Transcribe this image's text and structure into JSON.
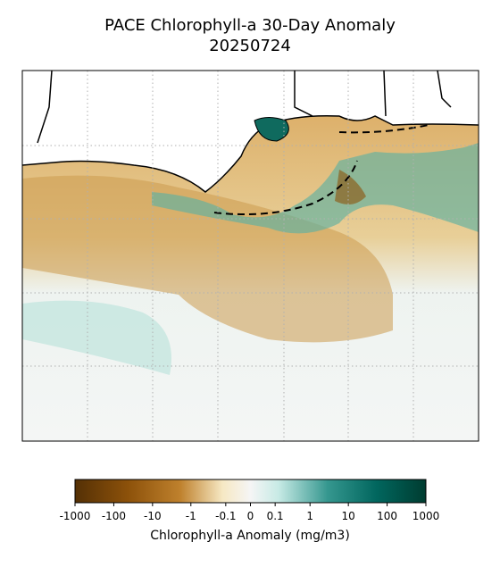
{
  "chart_data": {
    "type": "map",
    "title": "PACE Chlorophyll-a 30-Day Anomaly",
    "subtitle": "20250724",
    "colorbar": {
      "label": "Chlorophyll-a Anomaly (mg/m3)",
      "lim": [
        -1000,
        1000
      ],
      "ticks": [
        -1000,
        -100,
        -10,
        -1,
        -0.1,
        0,
        0.1,
        1,
        10,
        100,
        1000
      ]
    }
  }
}
